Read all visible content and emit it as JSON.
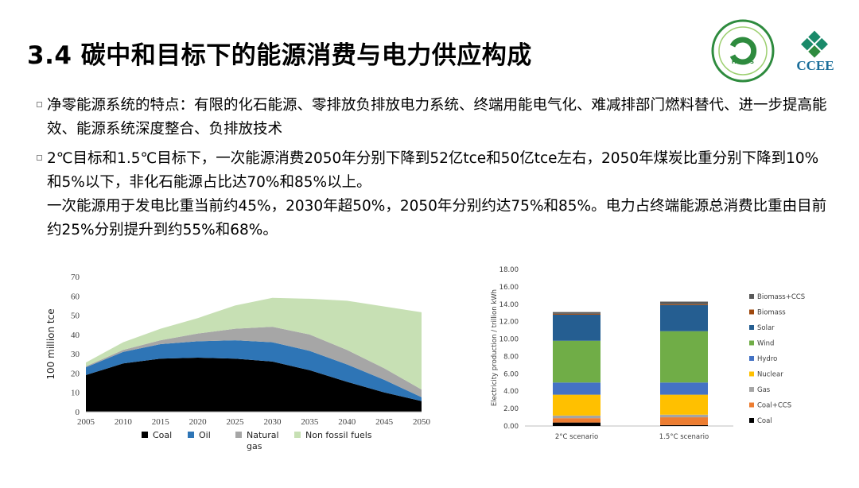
{
  "slide": {
    "title": "3.4 碳中和目标下的能源消费与电力供应构成",
    "bullets": [
      {
        "text": "净零能源系统的特点：有限的化石能源、零排放负排放电力系统、终端用能电气化、难减排部门燃料替代、进一步提高能效、能源系统深度整合、负排放技术"
      },
      {
        "text": "2℃目标和1.5℃目标下，一次能源消费2050年分别下降到52亿tce和50亿tce左右，2050年煤炭比重分别下降到10%和5%以下，非化石能源占比达70%和85%以上。",
        "sub": "一次能源用于发电比重当前约45%，2030年超50%，2050年分别约达75%和85%。电力占终端能源总消费比重由目前约25%分别提升到约55%和68%。"
      }
    ]
  },
  "logos": {
    "left_text": "HCIETS",
    "right_text": "CCEE",
    "colors": {
      "green": "#2e8b3e",
      "teal": "#1a8a6a"
    }
  },
  "chart_data": [
    {
      "type": "area",
      "stacked": true,
      "x": [
        2005,
        2010,
        2015,
        2020,
        2025,
        2030,
        2035,
        2040,
        2045,
        2050
      ],
      "series": [
        {
          "name": "Coal",
          "color": "#000000",
          "values": [
            19,
            25,
            27.5,
            28,
            27.5,
            26,
            21.5,
            15.5,
            10,
            5.5
          ]
        },
        {
          "name": "Oil",
          "color": "#2e75b6",
          "values": [
            4,
            6,
            7.5,
            8.5,
            9.5,
            10,
            10,
            9,
            6.5,
            2
          ]
        },
        {
          "name": "Natural gas",
          "color": "#a6a6a6",
          "values": [
            0.5,
            1,
            2,
            4,
            6,
            8,
            8.5,
            7.5,
            6,
            4
          ]
        },
        {
          "name": "Non fossil fuels",
          "color": "#c7e0b4",
          "values": [
            2,
            4,
            6,
            8,
            12,
            15,
            18.5,
            25.5,
            32,
            40
          ]
        }
      ],
      "ylabel": "100 million tce",
      "ylim": [
        0,
        70
      ],
      "yticks": [
        0,
        10,
        20,
        30,
        40,
        50,
        60,
        70
      ],
      "xticks": [
        "2005",
        "2010",
        "2015",
        "2020",
        "2025",
        "2030",
        "2035",
        "2040",
        "2045",
        "2050"
      ],
      "legend_position": "bottom"
    },
    {
      "type": "bar",
      "stacked": true,
      "categories": [
        "2°C scenario",
        "1.5°C scenario"
      ],
      "series": [
        {
          "name": "Coal",
          "color": "#000000",
          "values": [
            0.4,
            0.1
          ]
        },
        {
          "name": "Coal+CCS",
          "color": "#ed7d31",
          "values": [
            0.5,
            0.9
          ]
        },
        {
          "name": "Gas",
          "color": "#a5a5a5",
          "values": [
            0.3,
            0.3
          ]
        },
        {
          "name": "Nuclear",
          "color": "#ffc000",
          "values": [
            2.4,
            2.3
          ]
        },
        {
          "name": "Hydro",
          "color": "#4472c4",
          "values": [
            1.4,
            1.4
          ]
        },
        {
          "name": "Wind",
          "color": "#70ad47",
          "values": [
            4.8,
            5.9
          ]
        },
        {
          "name": "Solar",
          "color": "#255e91",
          "values": [
            3.0,
            3.0
          ]
        },
        {
          "name": "Biomass",
          "color": "#9e480e",
          "values": [
            0.1,
            0.1
          ]
        },
        {
          "name": "Biomass+CCS",
          "color": "#595959",
          "values": [
            0.2,
            0.3
          ]
        }
      ],
      "ylabel": "Electricity production / trillion kWh",
      "ylim": [
        0,
        18
      ],
      "yticks": [
        "0.00",
        "2.00",
        "4.00",
        "6.00",
        "8.00",
        "10.00",
        "12.00",
        "14.00",
        "16.00",
        "18.00"
      ],
      "legend_position": "right"
    }
  ]
}
